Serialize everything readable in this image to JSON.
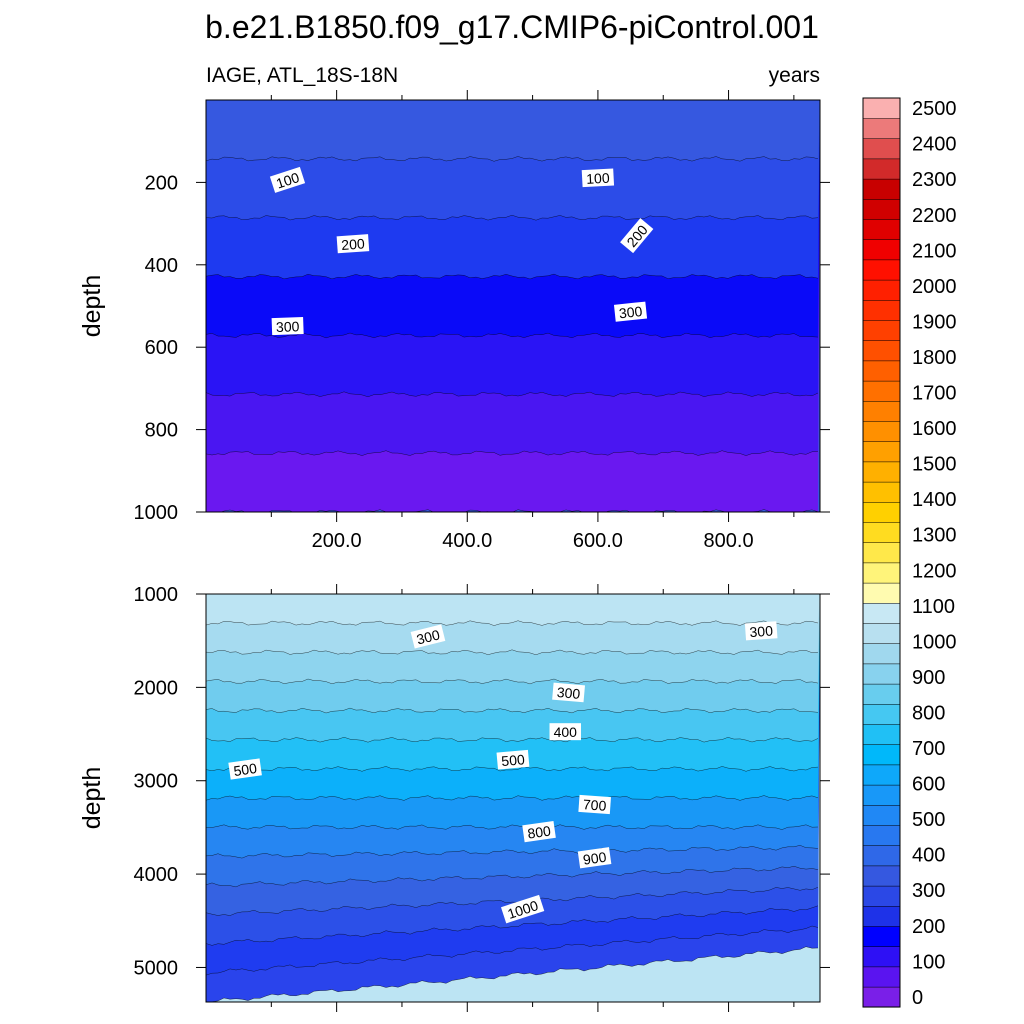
{
  "chart_data": {
    "type": "contour",
    "title": "b.e21.B1850.f09_g17.CMIP6-piControl.001",
    "left_subtitle": "IAGE, ATL_18S-18N",
    "right_subtitle": "years",
    "xlabel": "",
    "x_tick_labels": [
      "200.0",
      "400.0",
      "600.0",
      "800.0"
    ],
    "x_ticks": [
      200,
      400,
      600,
      800
    ],
    "xlim": [
      0,
      940
    ],
    "panels": [
      {
        "name": "upper",
        "ylabel": "depth",
        "ylim": [
          1000,
          0
        ],
        "y_ticks": [
          200,
          400,
          600,
          800,
          1000
        ],
        "y_tick_labels": [
          "200",
          "400",
          "600",
          "800",
          "1000"
        ],
        "contour_labels": [
          {
            "text": "100",
            "x": 125,
            "y": 195,
            "angle": -18
          },
          {
            "text": "100",
            "x": 600,
            "y": 190,
            "angle": -3
          },
          {
            "text": "200",
            "x": 225,
            "y": 350,
            "angle": -4
          },
          {
            "text": "200",
            "x": 660,
            "y": 330,
            "angle": -50
          },
          {
            "text": "300",
            "x": 125,
            "y": 550,
            "angle": -2
          },
          {
            "text": "300",
            "x": 650,
            "y": 515,
            "angle": -6
          }
        ]
      },
      {
        "name": "lower",
        "ylabel": "depth",
        "ylim": [
          5370,
          1000
        ],
        "y_ticks": [
          1000,
          2000,
          3000,
          4000,
          5000
        ],
        "y_tick_labels": [
          "1000",
          "2000",
          "3000",
          "4000",
          "5000"
        ],
        "contour_labels": [
          {
            "text": "300",
            "x": 340,
            "y": 1460,
            "angle": -14
          },
          {
            "text": "300",
            "x": 850,
            "y": 1400,
            "angle": -4
          },
          {
            "text": "300",
            "x": 555,
            "y": 2060,
            "angle": 5
          },
          {
            "text": "400",
            "x": 550,
            "y": 2480,
            "angle": 0
          },
          {
            "text": "500",
            "x": 60,
            "y": 2880,
            "angle": -8
          },
          {
            "text": "500",
            "x": 470,
            "y": 2780,
            "angle": -5
          },
          {
            "text": "700",
            "x": 595,
            "y": 3260,
            "angle": 4
          },
          {
            "text": "800",
            "x": 510,
            "y": 3550,
            "angle": -8
          },
          {
            "text": "900",
            "x": 595,
            "y": 3830,
            "angle": -8
          },
          {
            "text": "1000",
            "x": 485,
            "y": 4380,
            "angle": -18
          }
        ]
      }
    ],
    "colorbar": {
      "labels": [
        "0",
        "100",
        "200",
        "300",
        "400",
        "500",
        "600",
        "700",
        "800",
        "900",
        "1000",
        "1100",
        "1200",
        "1300",
        "1400",
        "1500",
        "1600",
        "1700",
        "1800",
        "1900",
        "2000",
        "2100",
        "2200",
        "2300",
        "2400",
        "2500"
      ],
      "colors": [
        "#7a1fe8",
        "#5a14f0",
        "#2e10f5",
        "#0000ff",
        "#1e32e8",
        "#2b48e6",
        "#3558e0",
        "#2f68e8",
        "#2878f0",
        "#2088f5",
        "#1898f8",
        "#0ea8fa",
        "#00b8fa",
        "#20c0f5",
        "#45c8f2",
        "#68cdee",
        "#88d2ee",
        "#a0d8ee",
        "#b8e0f0",
        "#c8e8f4",
        "#fffbb0",
        "#fff47a",
        "#ffe84a",
        "#ffdc20",
        "#ffd000",
        "#ffc000",
        "#ffb000",
        "#ffa000",
        "#ff9000",
        "#ff8000",
        "#ff7000",
        "#ff6000",
        "#ff5000",
        "#ff4000",
        "#ff3000",
        "#ff2000",
        "#ff1000",
        "#f00000",
        "#e00000",
        "#d00000",
        "#c80000",
        "#d22a2a",
        "#e04e4e",
        "#ec7a7a",
        "#fab0b0"
      ]
    }
  }
}
